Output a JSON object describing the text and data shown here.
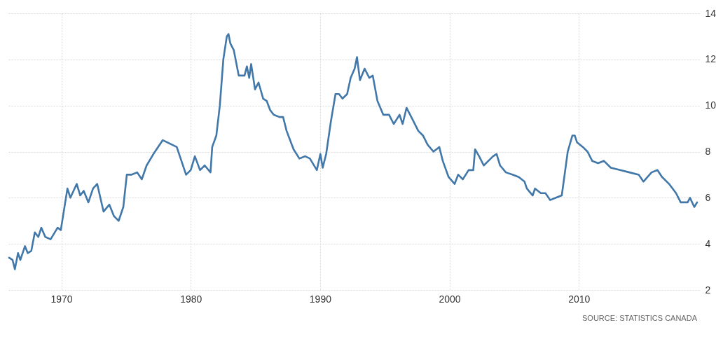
{
  "chart_data": {
    "type": "line",
    "annotations": [
      "SOURCE: STATISTICS CANADA"
    ],
    "x": [
      1965.96,
      1966.23,
      1966.41,
      1966.65,
      1966.83,
      1967.19,
      1967.4,
      1967.68,
      1967.95,
      1968.22,
      1968.45,
      1968.76,
      1969.17,
      1969.71,
      1969.96,
      1970.47,
      1970.7,
      1971.19,
      1971.46,
      1971.73,
      1972.09,
      1972.45,
      1972.77,
      1973.26,
      1973.71,
      1974.07,
      1974.43,
      1974.79,
      1975.06,
      1975.41,
      1975.86,
      1976.22,
      1976.59,
      1977.12,
      1977.84,
      1978.2,
      1978.92,
      1979.64,
      1980.0,
      1980.32,
      1980.72,
      1981.08,
      1981.53,
      1981.66,
      1981.98,
      1982.25,
      1982.52,
      1982.79,
      1982.92,
      1983.06,
      1983.33,
      1983.71,
      1984.16,
      1984.34,
      1984.52,
      1984.67,
      1984.97,
      1985.24,
      1985.6,
      1985.87,
      1986.14,
      1986.41,
      1986.86,
      1987.14,
      1987.41,
      1987.95,
      1988.4,
      1988.85,
      1989.21,
      1989.75,
      1990.02,
      1990.2,
      1990.47,
      1990.83,
      1991.19,
      1991.46,
      1991.73,
      1992.09,
      1992.36,
      1992.67,
      1992.85,
      1993.08,
      1993.44,
      1993.8,
      1994.07,
      1994.43,
      1994.88,
      1995.33,
      1995.69,
      1996.14,
      1996.38,
      1996.68,
      1997.14,
      1997.59,
      1997.95,
      1998.31,
      1998.76,
      1999.21,
      1999.48,
      1999.93,
      2000.4,
      2000.67,
      2001.03,
      2001.48,
      2001.84,
      2001.98,
      2002.29,
      2002.65,
      2003.01,
      2003.37,
      2003.64,
      2003.91,
      2004.36,
      2004.9,
      2005.35,
      2005.8,
      2005.98,
      2006.43,
      2006.61,
      2007.06,
      2007.42,
      2007.78,
      2008.23,
      2008.68,
      2009.14,
      2009.5,
      2009.68,
      2009.86,
      2010.31,
      2010.67,
      2011.03,
      2011.48,
      2011.93,
      2012.47,
      2013.19,
      2013.91,
      2014.63,
      2014.99,
      2015.62,
      2016.07,
      2016.43,
      2016.97,
      2017.51,
      2017.87,
      2018.41,
      2018.59,
      2018.92,
      2019.14
    ],
    "series": [
      {
        "color": "#4178a9",
        "values": [
          3.4,
          3.3,
          2.9,
          3.6,
          3.3,
          3.9,
          3.6,
          3.7,
          4.5,
          4.3,
          4.7,
          4.3,
          4.2,
          4.7,
          4.6,
          6.4,
          6.0,
          6.6,
          6.1,
          6.3,
          5.8,
          6.4,
          6.6,
          5.4,
          5.7,
          5.2,
          5.0,
          5.6,
          7.0,
          7.0,
          7.1,
          6.8,
          7.4,
          7.9,
          8.5,
          8.4,
          8.2,
          7.0,
          7.2,
          7.8,
          7.2,
          7.4,
          7.1,
          8.2,
          8.7,
          10.0,
          12.0,
          13.0,
          13.1,
          12.7,
          12.4,
          11.3,
          11.3,
          11.7,
          11.2,
          11.8,
          10.7,
          11.0,
          10.3,
          10.2,
          9.8,
          9.6,
          9.5,
          9.5,
          8.9,
          8.1,
          7.7,
          7.8,
          7.7,
          7.2,
          7.9,
          7.3,
          7.9,
          9.3,
          10.5,
          10.5,
          10.3,
          10.5,
          11.2,
          11.6,
          12.1,
          11.1,
          11.6,
          11.2,
          11.3,
          10.2,
          9.6,
          9.6,
          9.2,
          9.6,
          9.2,
          9.9,
          9.4,
          8.9,
          8.7,
          8.3,
          8.0,
          8.2,
          7.6,
          6.9,
          6.6,
          7.0,
          6.8,
          7.2,
          7.2,
          8.1,
          7.8,
          7.4,
          7.6,
          7.8,
          7.9,
          7.4,
          7.1,
          7.0,
          6.9,
          6.7,
          6.4,
          6.1,
          6.4,
          6.2,
          6.2,
          5.9,
          6.0,
          6.1,
          8.0,
          8.7,
          8.7,
          8.4,
          8.2,
          8.0,
          7.6,
          7.5,
          7.6,
          7.3,
          7.2,
          7.1,
          7.0,
          6.7,
          7.1,
          7.2,
          6.9,
          6.6,
          6.2,
          5.8,
          5.8,
          6.0,
          5.6,
          5.8
        ]
      }
    ],
    "xlim": [
      1965.8,
      2019.3
    ],
    "xticks": [
      1970,
      1980,
      1990,
      2000,
      2010
    ],
    "ylim": [
      2,
      14
    ],
    "yticks": [
      2,
      4,
      6,
      8,
      10,
      12,
      14
    ],
    "grid": true,
    "line_style": "solid",
    "marker": "none"
  }
}
